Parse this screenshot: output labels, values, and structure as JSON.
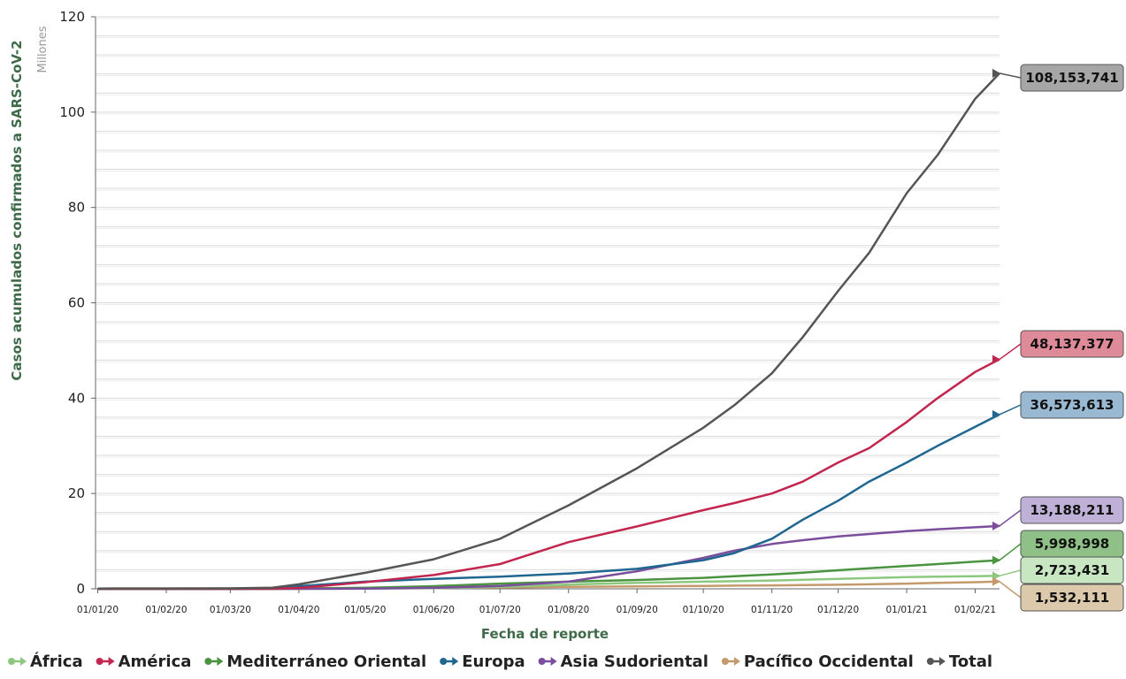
{
  "chart_data": {
    "type": "line",
    "title": "",
    "xlabel": "Fecha de reporte",
    "ylabel": "Casos acumulados confirmados a SARS-CoV-2",
    "y_unit": "Millones",
    "ylim": [
      0,
      120
    ],
    "y_ticks": [
      "0",
      "20",
      "40",
      "60",
      "80",
      "100",
      "120"
    ],
    "x_ticks": [
      "01/01/20",
      "01/02/20",
      "01/03/20",
      "01/04/20",
      "01/05/20",
      "01/06/20",
      "01/07/20",
      "01/08/20",
      "01/09/20",
      "01/10/20",
      "01/11/20",
      "01/12/20",
      "01/01/21",
      "01/02/21"
    ],
    "x_range": [
      "2019-12-31",
      "2021-02-12"
    ],
    "grid": true,
    "legend_position": "bottom",
    "x_dates": [
      "2020-01-01",
      "2020-02-01",
      "2020-03-01",
      "2020-03-20",
      "2020-04-01",
      "2020-05-01",
      "2020-06-01",
      "2020-07-01",
      "2020-08-01",
      "2020-09-01",
      "2020-10-01",
      "2020-10-15",
      "2020-11-01",
      "2020-11-15",
      "2020-12-01",
      "2020-12-15",
      "2021-01-01",
      "2021-01-15",
      "2021-02-01",
      "2021-02-12"
    ],
    "series": [
      {
        "name": "África",
        "color": "#8cc97f",
        "end_label": "2,723,431",
        "values": [
          0,
          0,
          0,
          0,
          0.005,
          0.04,
          0.15,
          0.4,
          0.9,
          1.25,
          1.5,
          1.6,
          1.75,
          1.9,
          2.1,
          2.25,
          2.45,
          2.55,
          2.65,
          2.72
        ]
      },
      {
        "name": "América",
        "color": "#c2264f",
        "end_label": "48,137,377",
        "values": [
          0,
          0,
          0,
          0.02,
          0.19,
          1.4,
          2.9,
          5.2,
          9.8,
          13.1,
          16.5,
          18.0,
          20.0,
          22.5,
          26.5,
          29.5,
          35.0,
          40.0,
          45.5,
          48.14
        ]
      },
      {
        "name": "Mediterráneo Oriental",
        "color": "#4a9440",
        "end_label": "5,998,998",
        "values": [
          0,
          0,
          0,
          0,
          0.05,
          0.2,
          0.55,
          1.1,
          1.5,
          1.85,
          2.3,
          2.65,
          3.0,
          3.4,
          3.9,
          4.3,
          4.8,
          5.2,
          5.7,
          6.0
        ]
      },
      {
        "name": "Europa",
        "color": "#1f6690",
        "end_label": "36,573,613",
        "values": [
          0,
          0,
          0,
          0.1,
          0.55,
          1.5,
          2.1,
          2.55,
          3.2,
          4.2,
          6.0,
          7.5,
          10.5,
          14.5,
          18.5,
          22.5,
          26.5,
          30.0,
          34.0,
          36.57
        ]
      },
      {
        "name": "Asia Sudoriental",
        "color": "#7a4e9c",
        "end_label": "13,188,211",
        "values": [
          0,
          0,
          0,
          0,
          0.005,
          0.04,
          0.2,
          0.6,
          1.5,
          3.7,
          6.5,
          8.0,
          9.4,
          10.2,
          11.0,
          11.5,
          12.1,
          12.5,
          12.9,
          13.19
        ]
      },
      {
        "name": "Pacífico Occidental",
        "color": "#c49a6c",
        "end_label": "1,532,111",
        "values": [
          0.05,
          0.08,
          0.1,
          0.12,
          0.15,
          0.18,
          0.22,
          0.28,
          0.42,
          0.52,
          0.62,
          0.66,
          0.72,
          0.78,
          0.85,
          0.95,
          1.1,
          1.25,
          1.4,
          1.53
        ]
      },
      {
        "name": "Total",
        "color": "#555555",
        "end_label": "108,153,741",
        "values": [
          0.05,
          0.08,
          0.1,
          0.25,
          0.95,
          3.35,
          6.2,
          10.5,
          17.5,
          25.3,
          33.8,
          38.5,
          45.2,
          52.8,
          62.5,
          70.5,
          83.0,
          91.0,
          102.8,
          108.15
        ]
      }
    ]
  }
}
